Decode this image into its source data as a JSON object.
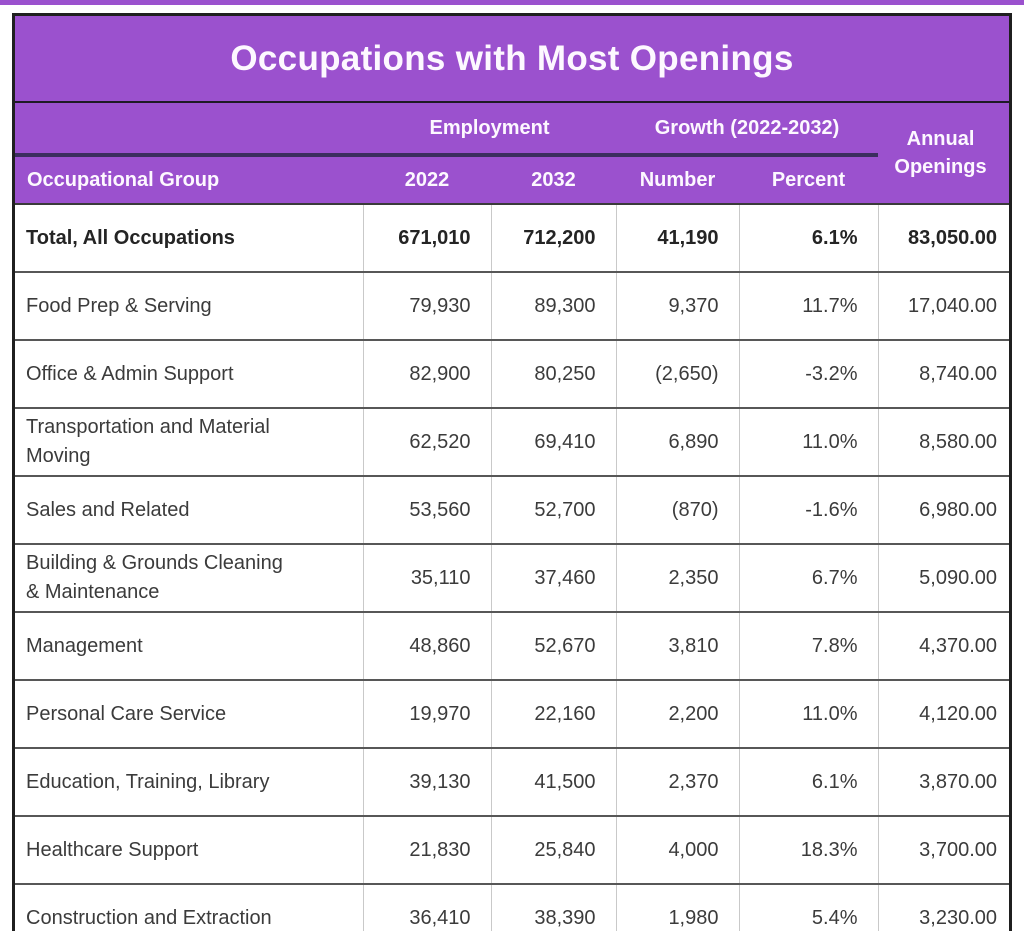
{
  "title": "Occupations with Most Openings",
  "header": {
    "occupational_group": "Occupational Group",
    "employment": "Employment",
    "growth": "Growth (2022-2032)",
    "year_2022": "2022",
    "year_2032": "2032",
    "number": "Number",
    "percent": "Percent",
    "annual_line1": "Annual",
    "annual_line2": "Openings"
  },
  "colors": {
    "header_purple": "#9B51CE",
    "header_underline": "#3B2D5E",
    "outer_border": "#1F1F1F",
    "row_divider": "#575757",
    "column_divider": "#C9C9C9",
    "header_text": "#FFFFFF",
    "body_text": "#3B3B3B"
  },
  "chart_data": {
    "type": "table",
    "title": "Occupations with Most Openings",
    "column_groups": [
      {
        "label": "Employment",
        "columns": [
          "2022",
          "2032"
        ]
      },
      {
        "label": "Growth (2022-2032)",
        "columns": [
          "Number",
          "Percent"
        ]
      }
    ],
    "columns": [
      "Occupational Group",
      "2022",
      "2032",
      "Number",
      "Percent",
      "Annual Openings"
    ],
    "rows": [
      {
        "group": "Total, All Occupations",
        "emp_2022": "671,010",
        "emp_2032": "712,200",
        "growth_number": "41,190",
        "growth_percent": "6.1%",
        "annual_openings": "83,050.00"
      },
      {
        "group": "Food Prep & Serving",
        "emp_2022": "79,930",
        "emp_2032": "89,300",
        "growth_number": "9,370",
        "growth_percent": "11.7%",
        "annual_openings": "17,040.00"
      },
      {
        "group": "Office & Admin Support",
        "emp_2022": "82,900",
        "emp_2032": "80,250",
        "growth_number": "(2,650)",
        "growth_percent": "-3.2%",
        "annual_openings": "8,740.00"
      },
      {
        "group": "Transportation and Material Moving",
        "emp_2022": "62,520",
        "emp_2032": "69,410",
        "growth_number": "6,890",
        "growth_percent": "11.0%",
        "annual_openings": "8,580.00"
      },
      {
        "group": "Sales and Related",
        "emp_2022": "53,560",
        "emp_2032": "52,700",
        "growth_number": "(870)",
        "growth_percent": "-1.6%",
        "annual_openings": "6,980.00"
      },
      {
        "group": "Building & Grounds Cleaning & Maintenance",
        "emp_2022": "35,110",
        "emp_2032": "37,460",
        "growth_number": "2,350",
        "growth_percent": "6.7%",
        "annual_openings": "5,090.00"
      },
      {
        "group": "Management",
        "emp_2022": "48,860",
        "emp_2032": "52,670",
        "growth_number": "3,810",
        "growth_percent": "7.8%",
        "annual_openings": "4,370.00"
      },
      {
        "group": "Personal Care Service",
        "emp_2022": "19,970",
        "emp_2032": "22,160",
        "growth_number": "2,200",
        "growth_percent": "11.0%",
        "annual_openings": "4,120.00"
      },
      {
        "group": "Education, Training, Library",
        "emp_2022": "39,130",
        "emp_2032": "41,500",
        "growth_number": "2,370",
        "growth_percent": "6.1%",
        "annual_openings": "3,870.00"
      },
      {
        "group": "Healthcare Support",
        "emp_2022": "21,830",
        "emp_2032": "25,840",
        "growth_number": "4,000",
        "growth_percent": "18.3%",
        "annual_openings": "3,700.00"
      },
      {
        "group": "Construction and Extraction",
        "emp_2022": "36,410",
        "emp_2032": "38,390",
        "growth_number": "1,980",
        "growth_percent": "5.4%",
        "annual_openings": "3,230.00"
      }
    ]
  }
}
